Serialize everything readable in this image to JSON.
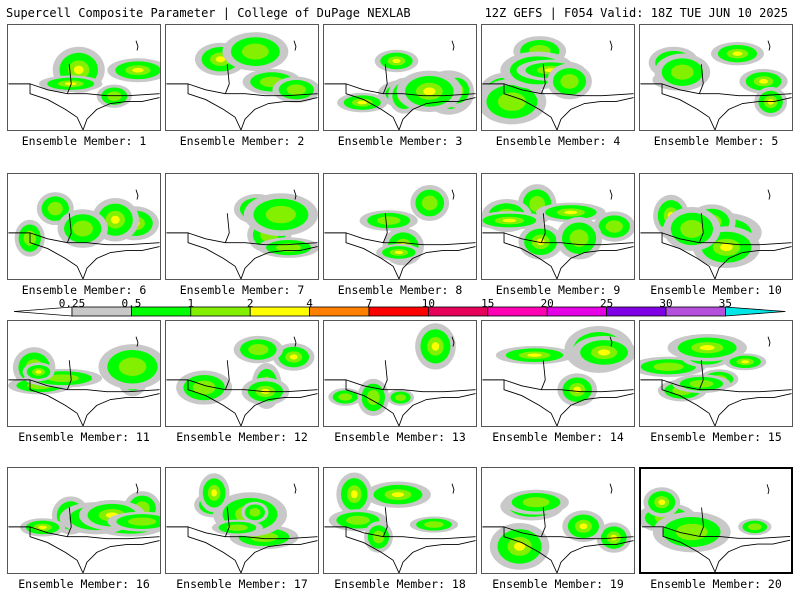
{
  "header": {
    "left": "Supercell Composite Parameter | College of DuPage NEXLAB",
    "right": "12Z GEFS | F054 Valid: 18Z TUE JUN 10 2025"
  },
  "colorbar": {
    "levels": [
      "0.25",
      "0.5",
      "1",
      "2",
      "4",
      "7",
      "10",
      "15",
      "20",
      "25",
      "30",
      "35"
    ],
    "colors": [
      "#c8c8c8",
      "#00ff00",
      "#82f000",
      "#ffff00",
      "#ff8000",
      "#ff0000",
      "#e6005a",
      "#ff00b4",
      "#e600e6",
      "#8000e6",
      "#b450dc",
      "#00e6e6"
    ]
  },
  "members": [
    {
      "label": "Ensemble Member: 1"
    },
    {
      "label": "Ensemble Member: 2"
    },
    {
      "label": "Ensemble Member: 3"
    },
    {
      "label": "Ensemble Member: 4"
    },
    {
      "label": "Ensemble Member: 5"
    },
    {
      "label": "Ensemble Member: 6"
    },
    {
      "label": "Ensemble Member: 7"
    },
    {
      "label": "Ensemble Member: 8"
    },
    {
      "label": "Ensemble Member: 9"
    },
    {
      "label": "Ensemble Member: 10"
    },
    {
      "label": "Ensemble Member: 11"
    },
    {
      "label": "Ensemble Member: 12"
    },
    {
      "label": "Ensemble Member: 13"
    },
    {
      "label": "Ensemble Member: 14"
    },
    {
      "label": "Ensemble Member: 15"
    },
    {
      "label": "Ensemble Member: 16"
    },
    {
      "label": "Ensemble Member: 17"
    },
    {
      "label": "Ensemble Member: 18"
    },
    {
      "label": "Ensemble Member: 19"
    },
    {
      "label": "Ensemble Member: 20",
      "selected": true
    }
  ]
}
